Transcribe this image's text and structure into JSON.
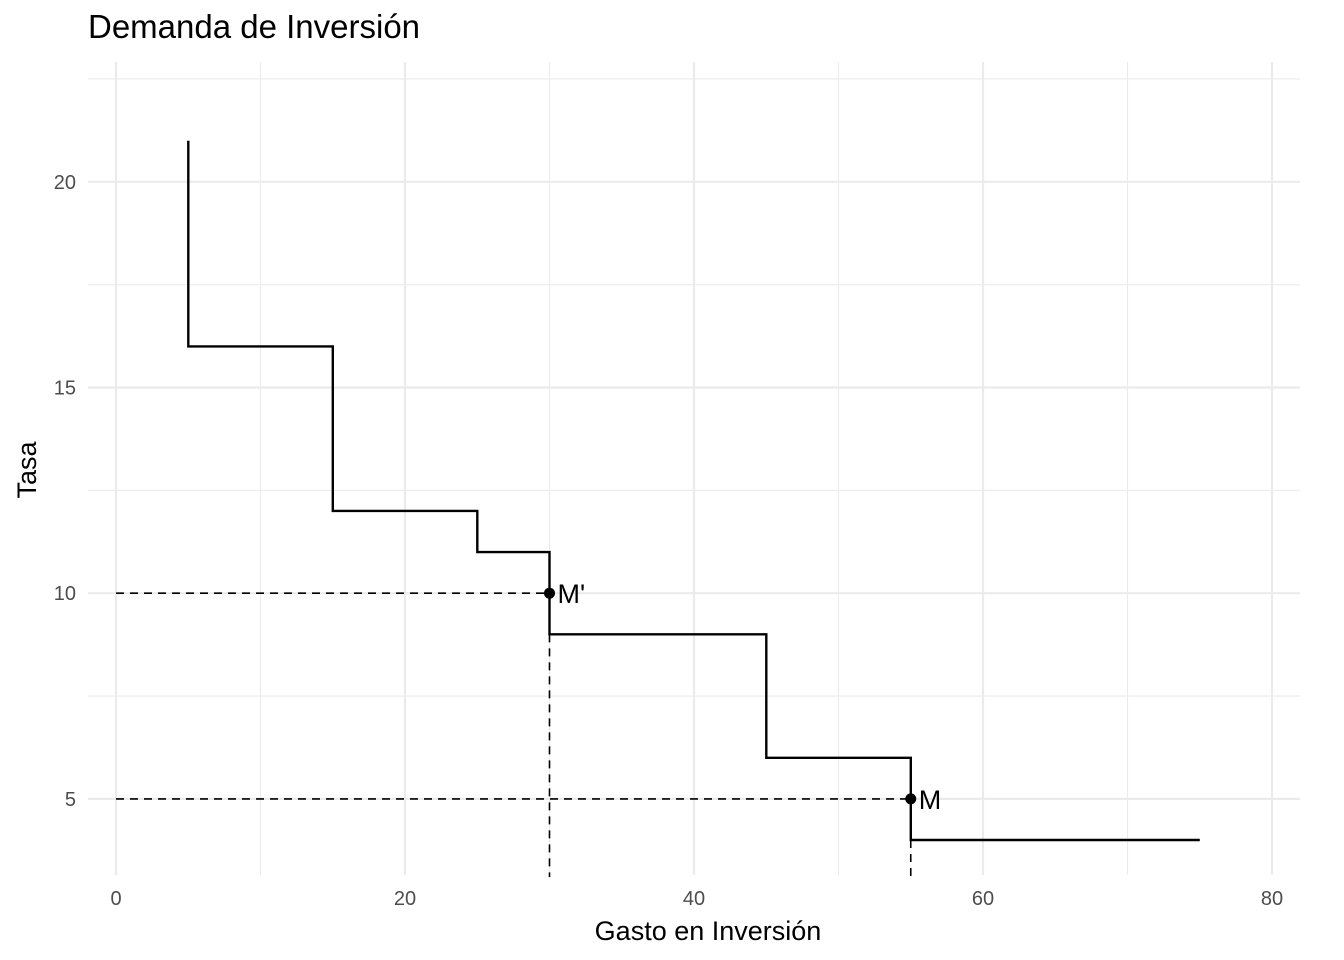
{
  "chart_data": {
    "type": "line",
    "title": "Demanda de Inversión",
    "xlabel": "Gasto en Inversión",
    "ylabel": "Tasa",
    "xlim": [
      0,
      80
    ],
    "ylim": [
      3.1,
      22.5
    ],
    "x_ticks": [
      0,
      20,
      40,
      60,
      80
    ],
    "y_ticks": [
      5,
      10,
      15,
      20
    ],
    "grid": true,
    "legend": "none",
    "line_color": "#000000",
    "series": [
      {
        "values": [
          {
            "x": 5,
            "y": 21
          },
          {
            "x": 5,
            "y": 16
          },
          {
            "x": 15,
            "y": 16
          },
          {
            "x": 15,
            "y": 12
          },
          {
            "x": 25,
            "y": 12
          },
          {
            "x": 25,
            "y": 11
          },
          {
            "x": 30,
            "y": 11
          },
          {
            "x": 30,
            "y": 9
          },
          {
            "x": 45,
            "y": 9
          },
          {
            "x": 45,
            "y": 6
          },
          {
            "x": 55,
            "y": 6
          },
          {
            "x": 55,
            "y": 4
          },
          {
            "x": 75,
            "y": 4
          }
        ]
      }
    ],
    "points": [
      {
        "label": "M'",
        "x": 30,
        "y": 10
      },
      {
        "label": "M",
        "x": 55,
        "y": 5
      }
    ],
    "reference_lines": [
      {
        "style": "dashed",
        "from": {
          "x": 0,
          "y": 10
        },
        "to": {
          "x": 30,
          "y": 10
        }
      },
      {
        "style": "dashed",
        "from": {
          "x": 30,
          "y": 9
        },
        "to": {
          "x": 30,
          "y": 3.1
        }
      },
      {
        "style": "dashed",
        "from": {
          "x": 0,
          "y": 5
        },
        "to": {
          "x": 55,
          "y": 5
        }
      },
      {
        "style": "dashed",
        "from": {
          "x": 55,
          "y": 4
        },
        "to": {
          "x": 55,
          "y": 3.1
        }
      }
    ]
  }
}
